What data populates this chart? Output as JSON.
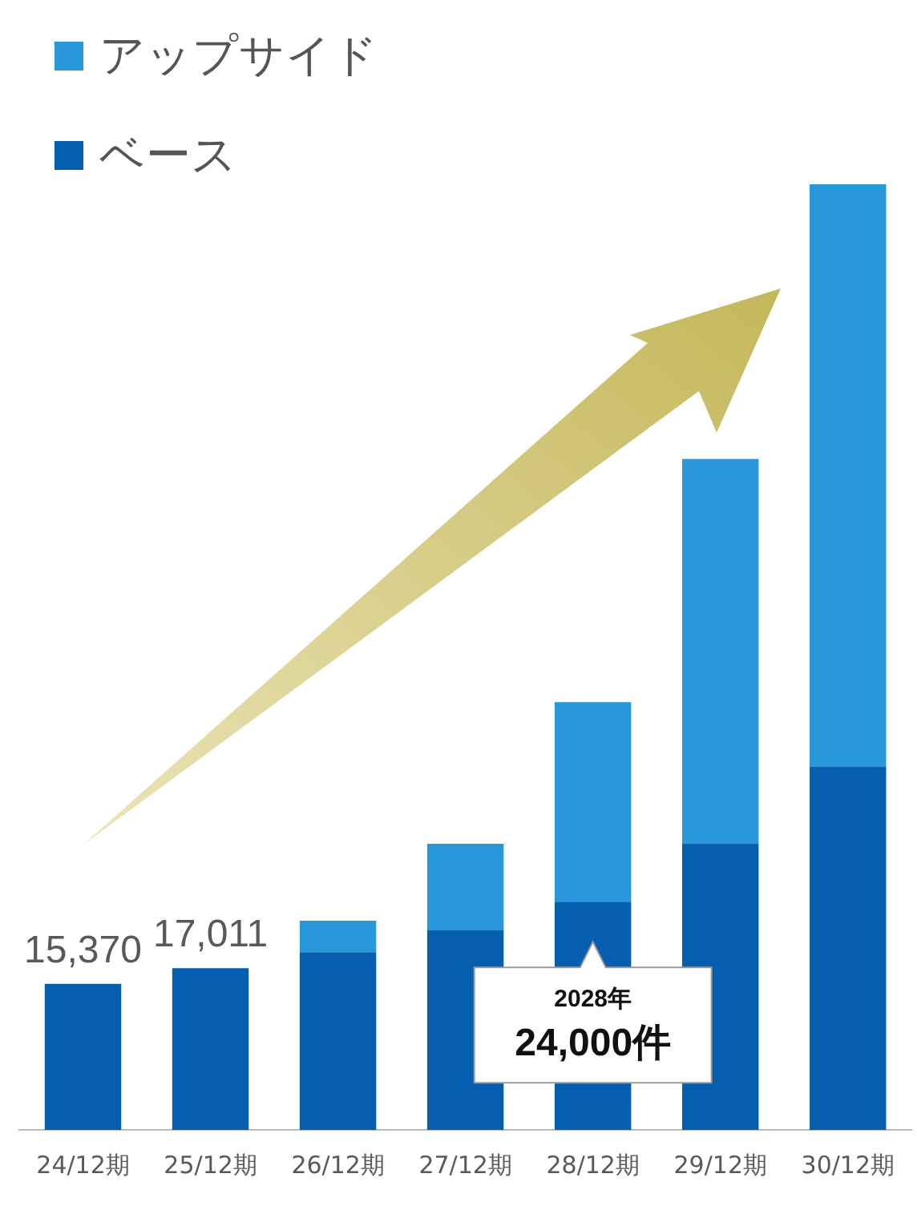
{
  "chart_data": {
    "type": "bar",
    "stacked": true,
    "categories": [
      "24/12期",
      "25/12期",
      "26/12期",
      "27/12期",
      "28/12期",
      "29/12期",
      "30/12期"
    ],
    "series": [
      {
        "name": "ベース",
        "color": "#055fae",
        "values": [
          15370,
          17011,
          18700,
          21000,
          24000,
          30100,
          38200
        ],
        "value_labels": [
          "15,370",
          "17,011",
          null,
          null,
          null,
          null,
          null
        ]
      },
      {
        "name": "アップサイド",
        "color": "#2898da",
        "values": [
          0,
          0,
          3300,
          9100,
          21000,
          40500,
          61300
        ]
      }
    ],
    "ylim": [
      0,
      100000
    ],
    "tick_labels": "x",
    "grid": false,
    "legend": "top left",
    "annotations": [
      "2028年",
      "24,000件"
    ]
  }
}
